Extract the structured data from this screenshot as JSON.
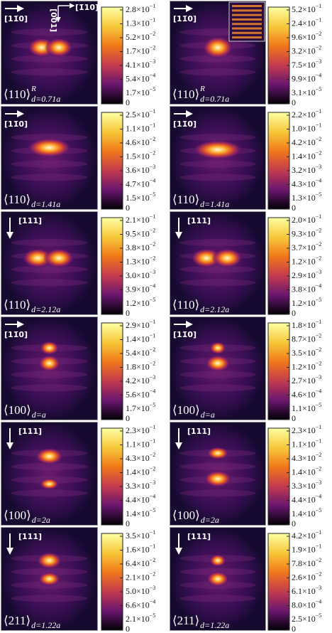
{
  "panels": [
    {
      "direction": "[11̄0]",
      "arrow": "right",
      "axes": [
        "[1̄10]",
        "[001]"
      ],
      "label": {
        "main": "⟨110⟩",
        "sup": "R",
        "sub": "d=0.71a"
      },
      "colorbar_ticks": [
        {
          "base": "2.8×10",
          "exp": "−1"
        },
        {
          "base": "1.3×10",
          "exp": "−1"
        },
        {
          "base": "5.2×10",
          "exp": "−2"
        },
        {
          "base": "1.7×10",
          "exp": "−2"
        },
        {
          "base": "4.1×10",
          "exp": "−3"
        },
        {
          "base": "5.4×10",
          "exp": "−4"
        },
        {
          "base": "1.7×10",
          "exp": "−5"
        },
        {
          "base": "0"
        }
      ]
    },
    {
      "direction": "[11̄0]",
      "arrow": "right",
      "label": {
        "main": "⟨110⟩",
        "sup": "R",
        "sub": "d=0.71a"
      },
      "colorbar_ticks": [
        {
          "base": "5.2×10",
          "exp": "−1"
        },
        {
          "base": "2.4×10",
          "exp": "−1"
        },
        {
          "base": "9.6×10",
          "exp": "−2"
        },
        {
          "base": "3.2×10",
          "exp": "−2"
        },
        {
          "base": "7.5×10",
          "exp": "−3"
        },
        {
          "base": "9.9×10",
          "exp": "−4"
        },
        {
          "base": "3.1×10",
          "exp": "−5"
        },
        {
          "base": "0"
        }
      ]
    },
    {
      "direction": "[11̄0]",
      "arrow": "right",
      "label": {
        "main": "⟨110⟩",
        "sub": "d=1.41a"
      },
      "colorbar_ticks": [
        {
          "base": "2.5×10",
          "exp": "−1"
        },
        {
          "base": "1.1×10",
          "exp": "−1"
        },
        {
          "base": "4.6×10",
          "exp": "−2"
        },
        {
          "base": "1.5×10",
          "exp": "−2"
        },
        {
          "base": "3.6×10",
          "exp": "−3"
        },
        {
          "base": "4.7×10",
          "exp": "−4"
        },
        {
          "base": "1.5×10",
          "exp": "−5"
        },
        {
          "base": "0"
        }
      ]
    },
    {
      "direction": "[11̄0]",
      "arrow": "right",
      "label": {
        "main": "⟨110⟩",
        "sub": "d=1.41a"
      },
      "colorbar_ticks": [
        {
          "base": "2.2×10",
          "exp": "−1"
        },
        {
          "base": "1.0×10",
          "exp": "−1"
        },
        {
          "base": "4.2×10",
          "exp": "−2"
        },
        {
          "base": "1.4×10",
          "exp": "−2"
        },
        {
          "base": "3.2×10",
          "exp": "−3"
        },
        {
          "base": "4.3×10",
          "exp": "−4"
        },
        {
          "base": "1.3×10",
          "exp": "−5"
        },
        {
          "base": "0"
        }
      ]
    },
    {
      "direction": "[111]",
      "arrow": "down",
      "label": {
        "main": "⟨110⟩",
        "sub": "d=2.12a"
      },
      "colorbar_ticks": [
        {
          "base": "2.1×10",
          "exp": "−1"
        },
        {
          "base": "9.5×10",
          "exp": "−2"
        },
        {
          "base": "3.8×10",
          "exp": "−2"
        },
        {
          "base": "1.3×10",
          "exp": "−2"
        },
        {
          "base": "3.0×10",
          "exp": "−3"
        },
        {
          "base": "3.9×10",
          "exp": "−4"
        },
        {
          "base": "1.2×10",
          "exp": "−5"
        },
        {
          "base": "0"
        }
      ]
    },
    {
      "direction": "[111]",
      "arrow": "down",
      "label": {
        "main": "⟨110⟩",
        "sub": "d=2.12a"
      },
      "colorbar_ticks": [
        {
          "base": "2.0×10",
          "exp": "−1"
        },
        {
          "base": "9.3×10",
          "exp": "−2"
        },
        {
          "base": "3.7×10",
          "exp": "−2"
        },
        {
          "base": "1.2×10",
          "exp": "−2"
        },
        {
          "base": "2.9×10",
          "exp": "−3"
        },
        {
          "base": "3.8×10",
          "exp": "−4"
        },
        {
          "base": "1.2×10",
          "exp": "−5"
        },
        {
          "base": "0"
        }
      ]
    },
    {
      "direction": "[11̄0]",
      "arrow": "right",
      "label": {
        "main": "⟨100⟩",
        "sub": "d=a"
      },
      "colorbar_ticks": [
        {
          "base": "2.9×10",
          "exp": "−1"
        },
        {
          "base": "1.4×10",
          "exp": "−1"
        },
        {
          "base": "5.4×10",
          "exp": "−2"
        },
        {
          "base": "1.8×10",
          "exp": "−2"
        },
        {
          "base": "4.2×10",
          "exp": "−3"
        },
        {
          "base": "5.6×10",
          "exp": "−4"
        },
        {
          "base": "1.7×10",
          "exp": "−5"
        },
        {
          "base": "0"
        }
      ]
    },
    {
      "direction": "[11̄0]",
      "arrow": "right",
      "label": {
        "main": "⟨100⟩",
        "sub": "d=a"
      },
      "colorbar_ticks": [
        {
          "base": "1.8×10",
          "exp": "−1"
        },
        {
          "base": "8.7×10",
          "exp": "−2"
        },
        {
          "base": "3.5×10",
          "exp": "−2"
        },
        {
          "base": "1.2×10",
          "exp": "−2"
        },
        {
          "base": "2.7×10",
          "exp": "−3"
        },
        {
          "base": "4.6×10",
          "exp": "−4"
        },
        {
          "base": "1.1×10",
          "exp": "−5"
        },
        {
          "base": "0"
        }
      ]
    },
    {
      "direction": "[111]",
      "arrow": "down",
      "label": {
        "main": "⟨100⟩",
        "sub": "d=2a"
      },
      "colorbar_ticks": [
        {
          "base": "2.3×10",
          "exp": "−1"
        },
        {
          "base": "1.1×10",
          "exp": "−1"
        },
        {
          "base": "4.3×10",
          "exp": "−2"
        },
        {
          "base": "1.4×10",
          "exp": "−2"
        },
        {
          "base": "3.3×10",
          "exp": "−3"
        },
        {
          "base": "4.4×10",
          "exp": "−4"
        },
        {
          "base": "1.4×10",
          "exp": "−5"
        },
        {
          "base": "0"
        }
      ]
    },
    {
      "direction": "[111]",
      "arrow": "down",
      "label": {
        "main": "⟨100⟩",
        "sub": "d=2a"
      },
      "colorbar_ticks": [
        {
          "base": "2.3×10",
          "exp": "−1"
        },
        {
          "base": "1.1×10",
          "exp": "−1"
        },
        {
          "base": "4.3×10",
          "exp": "−2"
        },
        {
          "base": "1.4×10",
          "exp": "−2"
        },
        {
          "base": "3.3×10",
          "exp": "−3"
        },
        {
          "base": "4.4×10",
          "exp": "−4"
        },
        {
          "base": "1.4×10",
          "exp": "−5"
        },
        {
          "base": "0"
        }
      ]
    },
    {
      "direction": "[111]",
      "arrow": "down",
      "label": {
        "main": "⟨211⟩",
        "sub": "d=1.22a"
      },
      "colorbar_ticks": [
        {
          "base": "3.5×10",
          "exp": "−1"
        },
        {
          "base": "1.6×10",
          "exp": "−1"
        },
        {
          "base": "6.4×10",
          "exp": "−2"
        },
        {
          "base": "2.1×10",
          "exp": "−2"
        },
        {
          "base": "5.0×10",
          "exp": "−3"
        },
        {
          "base": "6.6×10",
          "exp": "−4"
        },
        {
          "base": "2.1×10",
          "exp": "−5"
        },
        {
          "base": "0"
        }
      ]
    },
    {
      "direction": "[111]",
      "arrow": "down",
      "label": {
        "main": "⟨211⟩",
        "sub": "d=1.22a"
      },
      "colorbar_ticks": [
        {
          "base": "4.2×10",
          "exp": "−1"
        },
        {
          "base": "1.9×10",
          "exp": "−1"
        },
        {
          "base": "7.8×10",
          "exp": "−2"
        },
        {
          "base": "2.6×10",
          "exp": "−2"
        },
        {
          "base": "6.1×10",
          "exp": "−3"
        },
        {
          "base": "8.0×10",
          "exp": "−4"
        },
        {
          "base": "2.5×10",
          "exp": "−5"
        },
        {
          "base": "0"
        }
      ]
    }
  ]
}
